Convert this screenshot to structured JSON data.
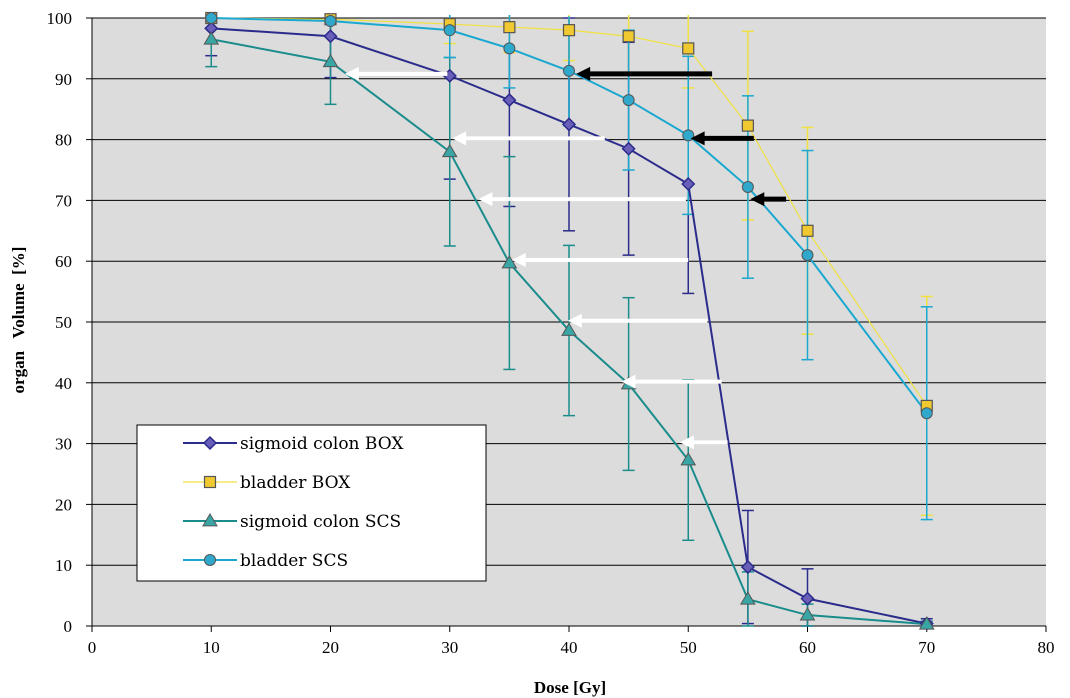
{
  "chart_data": {
    "type": "line",
    "title": "",
    "xlabel": "Dose [Gy]",
    "ylabel": "organ   Volume  [%]",
    "xlim": [
      0,
      80
    ],
    "ylim": [
      0,
      100
    ],
    "x_ticks": [
      0,
      10,
      20,
      30,
      40,
      50,
      60,
      70,
      80
    ],
    "y_ticks": [
      0,
      10,
      20,
      30,
      40,
      50,
      60,
      70,
      80,
      90,
      100
    ],
    "grid": "horizontal",
    "plot_background": "#dcdcdc",
    "legend_position": "bottom-left",
    "series": [
      {
        "name": "sigmoid colon BOX",
        "color": "#2b2b8c",
        "marker": "diamond",
        "marker_fill": "#6a5fb8",
        "x": [
          10,
          20,
          30,
          35,
          40,
          45,
          50,
          55,
          60,
          70
        ],
        "y": [
          98.3,
          97.0,
          90.5,
          86.5,
          82.5,
          78.5,
          72.7,
          9.7,
          4.5,
          0.4
        ],
        "error": [
          4.5,
          6.8,
          17.0,
          17.5,
          17.5,
          17.5,
          18.0,
          9.3,
          4.9,
          0.8
        ]
      },
      {
        "name": "bladder BOX",
        "color": "#f0e040",
        "marker": "square",
        "marker_fill": "#f0c830",
        "x": [
          10,
          20,
          30,
          35,
          40,
          45,
          50,
          55,
          60,
          70
        ],
        "y": [
          100,
          99.8,
          99.0,
          98.5,
          98.0,
          97.0,
          95.0,
          82.3,
          65.0,
          36.2
        ],
        "error": [
          0,
          0.3,
          3.2,
          4.2,
          5.0,
          6.0,
          6.5,
          15.5,
          17.0,
          18.0
        ]
      },
      {
        "name": "sigmoid colon SCS",
        "color": "#1a8c8c",
        "marker": "triangle",
        "marker_fill": "#3aa5a5",
        "x": [
          10,
          20,
          30,
          35,
          40,
          45,
          50,
          55,
          60,
          70
        ],
        "y": [
          96.5,
          92.8,
          78.0,
          59.7,
          48.6,
          39.8,
          27.3,
          4.4,
          1.8,
          0.3
        ],
        "error": [
          4.5,
          7.0,
          15.5,
          17.5,
          14.0,
          14.2,
          13.2,
          4.5,
          1.8,
          0.5
        ]
      },
      {
        "name": "bladder SCS",
        "color": "#1aa8d0",
        "marker": "circle",
        "marker_fill": "#30a8cc",
        "x": [
          10,
          20,
          30,
          35,
          40,
          45,
          50,
          55,
          60,
          70
        ],
        "y": [
          100,
          99.5,
          98.0,
          95.0,
          91.3,
          86.5,
          80.7,
          72.2,
          61.0,
          35.0
        ],
        "error": [
          0,
          0.5,
          4.5,
          6.5,
          9.0,
          11.5,
          13.0,
          15.0,
          17.2,
          17.5
        ]
      }
    ],
    "annotations": [
      {
        "type": "arrow",
        "color": "black",
        "from": [
          52.0,
          90.8
        ],
        "to": [
          40.6,
          90.8
        ]
      },
      {
        "type": "arrow",
        "color": "black",
        "from": [
          55.5,
          80.2
        ],
        "to": [
          50.2,
          80.2
        ]
      },
      {
        "type": "arrow",
        "color": "black",
        "from": [
          58.2,
          70.2
        ],
        "to": [
          55.2,
          70.2
        ]
      },
      {
        "type": "arrow",
        "color": "white",
        "from": [
          29.8,
          90.8
        ],
        "to": [
          21.2,
          90.8
        ]
      },
      {
        "type": "arrow",
        "color": "white",
        "from": [
          43.0,
          80.2
        ],
        "to": [
          30.2,
          80.2
        ]
      },
      {
        "type": "arrow",
        "color": "white",
        "from": [
          49.8,
          70.2
        ],
        "to": [
          32.4,
          70.2
        ]
      },
      {
        "type": "arrow",
        "color": "white",
        "from": [
          50.0,
          60.2
        ],
        "to": [
          35.2,
          60.2
        ]
      },
      {
        "type": "arrow",
        "color": "white",
        "from": [
          51.6,
          50.2
        ],
        "to": [
          39.9,
          50.2
        ]
      },
      {
        "type": "arrow",
        "color": "white",
        "from": [
          52.8,
          40.2
        ],
        "to": [
          44.4,
          40.2
        ]
      },
      {
        "type": "arrow",
        "color": "white",
        "from": [
          53.3,
          30.2
        ],
        "to": [
          49.3,
          30.2
        ]
      }
    ]
  }
}
